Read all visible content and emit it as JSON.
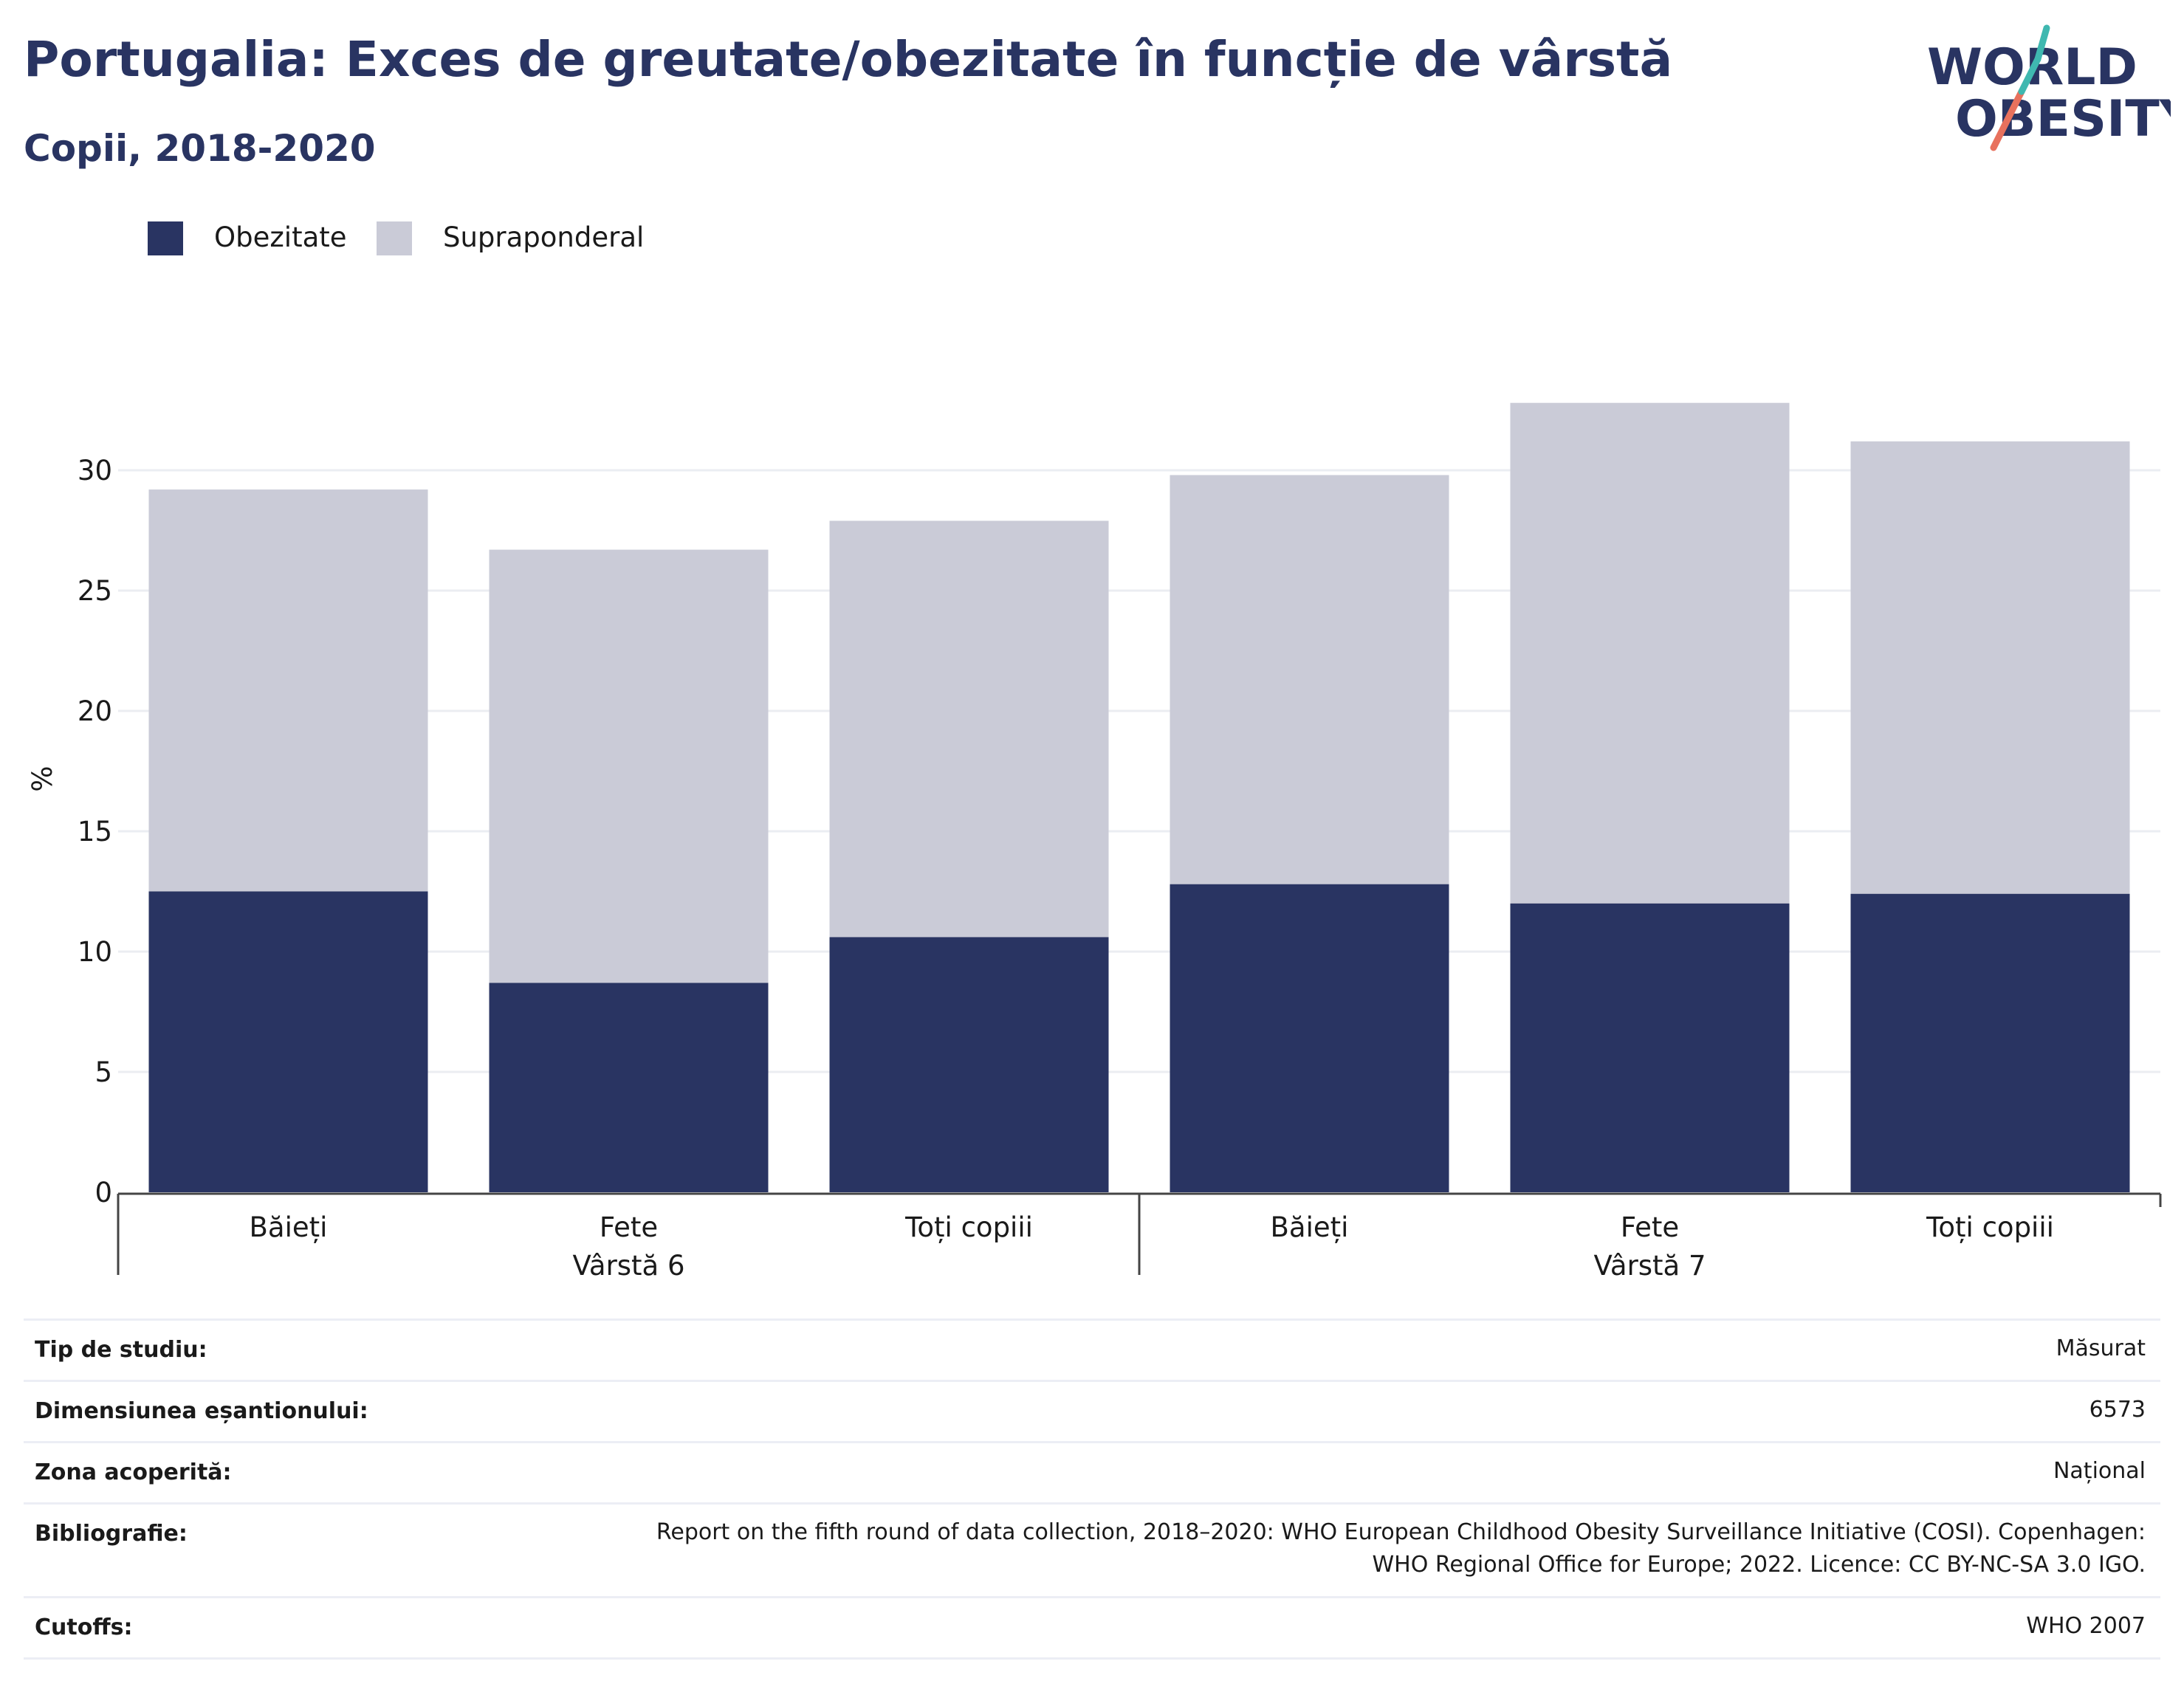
{
  "title": "Portugalia: Exces de greutate/obezitate în funcție de vârstă",
  "subtitle": "Copii, 2018-2020",
  "logo": {
    "line1": "WORLD",
    "line2": "OBESITY",
    "colors": {
      "text": "#293462",
      "accent_teal": "#3fb8b0",
      "accent_coral": "#e8715d"
    }
  },
  "legend": [
    {
      "label": "Obezitate",
      "color": "#293462"
    },
    {
      "label": "Supraponderal",
      "color": "#cacbd7"
    }
  ],
  "chart_data": {
    "type": "bar",
    "stacked": true,
    "ylabel": "%",
    "ylim": [
      0,
      35
    ],
    "yticks": [
      0,
      5,
      10,
      15,
      20,
      25,
      30
    ],
    "grid": true,
    "legend_position": "top-left",
    "groups": [
      {
        "label": "Vârstă 6",
        "categories": [
          "Băieți",
          "Fete",
          "Toți copiii"
        ]
      },
      {
        "label": "Vârstă 7",
        "categories": [
          "Băieți",
          "Fete",
          "Toți copiii"
        ]
      }
    ],
    "categories": [
      "Băieți",
      "Fete",
      "Toți copiii",
      "Băieți",
      "Fete",
      "Toți copiii"
    ],
    "series": [
      {
        "name": "Obezitate",
        "color": "#293462",
        "values": [
          12.5,
          8.7,
          10.6,
          12.8,
          12.0,
          12.4
        ]
      },
      {
        "name": "Supraponderal",
        "color": "#cacbd7",
        "values": [
          16.7,
          18.0,
          17.3,
          17.0,
          20.8,
          18.8
        ]
      }
    ]
  },
  "info": [
    {
      "label": "Tip de studiu:",
      "value": "Măsurat"
    },
    {
      "label": "Dimensiunea eșantionului:",
      "value": "6573"
    },
    {
      "label": "Zona acoperită:",
      "value": "Național"
    },
    {
      "label": "Bibliografie:",
      "value_lines": [
        "Report on the fifth round of data collection, 2018–2020: WHO European Childhood Obesity Surveillance Initiative (COSI). Copenhagen:",
        "WHO Regional Office for Europe; 2022. Licence: CC BY-NC-SA 3.0 IGO."
      ]
    },
    {
      "label": "Cutoffs:",
      "value": "WHO 2007"
    }
  ]
}
